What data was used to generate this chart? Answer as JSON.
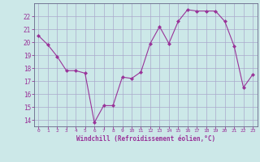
{
  "x": [
    0,
    1,
    2,
    3,
    4,
    5,
    6,
    7,
    8,
    9,
    10,
    11,
    12,
    13,
    14,
    15,
    16,
    17,
    18,
    19,
    20,
    21,
    22,
    23
  ],
  "y": [
    20.5,
    19.8,
    18.9,
    17.8,
    17.8,
    17.6,
    13.8,
    15.1,
    15.1,
    17.3,
    17.2,
    17.7,
    19.9,
    21.2,
    19.9,
    21.6,
    22.5,
    22.4,
    22.4,
    22.4,
    21.6,
    19.7,
    16.5,
    17.5
  ],
  "xlim": [
    -0.5,
    23.5
  ],
  "ylim": [
    13.5,
    23.0
  ],
  "yticks": [
    14,
    15,
    16,
    17,
    18,
    19,
    20,
    21,
    22
  ],
  "xticks": [
    0,
    1,
    2,
    3,
    4,
    5,
    6,
    7,
    8,
    9,
    10,
    11,
    12,
    13,
    14,
    15,
    16,
    17,
    18,
    19,
    20,
    21,
    22,
    23
  ],
  "xlabel": "Windchill (Refroidissement éolien,°C)",
  "line_color": "#993399",
  "marker": "D",
  "marker_size": 2,
  "bg_color": "#cce8e8",
  "grid_color": "#aaaacc",
  "axis_color": "#666688",
  "tick_color": "#993399",
  "label_color": "#993399"
}
